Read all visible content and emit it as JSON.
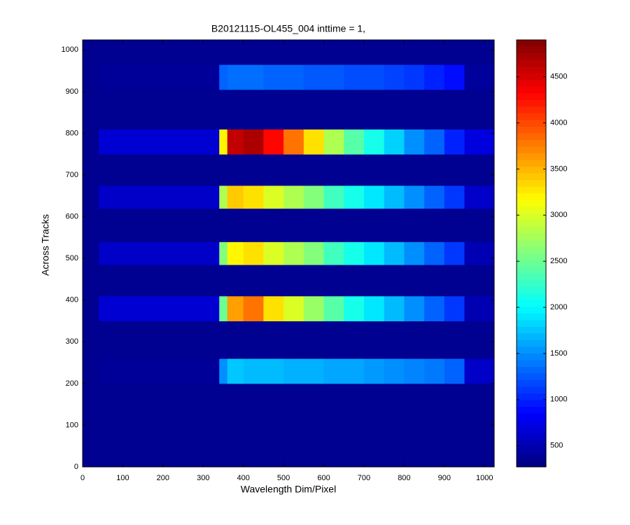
{
  "chart_data": {
    "type": "heatmap",
    "title": "B20121115-OL455_004 inttime = 1,",
    "xlabel": "Wavelength Dim/Pixel",
    "ylabel": "Across Tracks",
    "colormap": "jet",
    "xlim": [
      0,
      1024
    ],
    "ylim": [
      0,
      1024
    ],
    "xticks": [
      0,
      100,
      200,
      300,
      400,
      500,
      600,
      700,
      800,
      900,
      1000
    ],
    "yticks": [
      0,
      100,
      200,
      300,
      400,
      500,
      600,
      700,
      800,
      900,
      1000
    ],
    "clim": [
      270,
      4900
    ],
    "cticks": [
      500,
      1000,
      1500,
      2000,
      2500,
      3000,
      3500,
      4000,
      4500
    ],
    "x": [
      0,
      40,
      340,
      360,
      400,
      450,
      500,
      550,
      600,
      650,
      700,
      750,
      800,
      850,
      900,
      950,
      1024
    ],
    "y": [
      0,
      200,
      260,
      350,
      410,
      485,
      540,
      620,
      675,
      750,
      810,
      905,
      965,
      1024
    ],
    "values": [
      [
        350,
        350,
        350,
        350,
        350,
        350,
        350,
        350,
        350,
        350,
        350,
        350,
        350,
        350,
        350,
        350
      ],
      [
        350,
        380,
        1500,
        1750,
        1700,
        1700,
        1650,
        1650,
        1600,
        1600,
        1550,
        1500,
        1450,
        1400,
        1300,
        600
      ],
      [
        350,
        350,
        350,
        350,
        350,
        350,
        350,
        350,
        350,
        350,
        350,
        350,
        350,
        350,
        350,
        350
      ],
      [
        350,
        650,
        2500,
        3600,
        3800,
        3300,
        3000,
        2700,
        2400,
        2100,
        1900,
        1700,
        1500,
        1300,
        1100,
        500
      ],
      [
        350,
        350,
        350,
        350,
        350,
        350,
        350,
        350,
        350,
        350,
        350,
        350,
        350,
        350,
        350,
        350
      ],
      [
        350,
        600,
        2600,
        3200,
        3300,
        3000,
        2800,
        2600,
        2300,
        2100,
        1900,
        1700,
        1500,
        1300,
        1100,
        500
      ],
      [
        350,
        350,
        350,
        350,
        350,
        350,
        350,
        350,
        350,
        350,
        350,
        350,
        350,
        350,
        350,
        350
      ],
      [
        350,
        600,
        2800,
        3400,
        3300,
        3000,
        2800,
        2600,
        2300,
        2100,
        1900,
        1700,
        1500,
        1300,
        1100,
        600
      ],
      [
        350,
        350,
        350,
        350,
        350,
        350,
        350,
        350,
        350,
        350,
        350,
        350,
        350,
        350,
        350,
        350
      ],
      [
        350,
        650,
        3200,
        4600,
        4700,
        4300,
        3800,
        3300,
        2800,
        2400,
        2100,
        1800,
        1500,
        1300,
        1000,
        700
      ],
      [
        350,
        350,
        350,
        350,
        350,
        350,
        350,
        350,
        350,
        350,
        350,
        350,
        350,
        350,
        350,
        350
      ],
      [
        350,
        380,
        1300,
        1350,
        1350,
        1300,
        1300,
        1250,
        1250,
        1200,
        1200,
        1150,
        1100,
        1000,
        900,
        400
      ],
      [
        350,
        350,
        350,
        350,
        350,
        350,
        350,
        350,
        350,
        350,
        350,
        350,
        350,
        350,
        350,
        350
      ]
    ]
  }
}
